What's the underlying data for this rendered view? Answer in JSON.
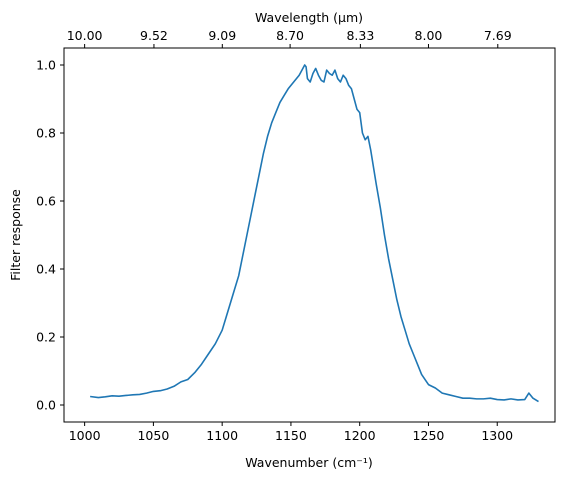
{
  "chart_data": {
    "type": "line",
    "xlabel": "Wavenumber (cm⁻¹)",
    "ylabel": "Filter response",
    "top_xlabel": "Wavelength (μm)",
    "xlim": [
      985,
      1342
    ],
    "ylim": [
      -0.05,
      1.05
    ],
    "x_ticks": [
      1000,
      1050,
      1100,
      1150,
      1200,
      1250,
      1300
    ],
    "y_ticks": [
      0.0,
      0.2,
      0.4,
      0.6,
      0.8,
      1.0
    ],
    "top_ticks": [
      {
        "wavenumber": 1000.0,
        "label": "10.00"
      },
      {
        "wavenumber": 1050.4,
        "label": "9.52"
      },
      {
        "wavenumber": 1100.1,
        "label": "9.09"
      },
      {
        "wavenumber": 1149.4,
        "label": "8.70"
      },
      {
        "wavenumber": 1200.5,
        "label": "8.33"
      },
      {
        "wavenumber": 1250.0,
        "label": "8.00"
      },
      {
        "wavenumber": 1300.4,
        "label": "7.69"
      }
    ],
    "series": [
      {
        "color": "#1f77b4",
        "x": [
          1004,
          1010,
          1015,
          1020,
          1025,
          1030,
          1035,
          1040,
          1045,
          1050,
          1055,
          1060,
          1065,
          1070,
          1075,
          1080,
          1085,
          1090,
          1095,
          1100,
          1103,
          1106,
          1109,
          1112,
          1115,
          1118,
          1121,
          1124,
          1127,
          1130,
          1133,
          1136,
          1139,
          1142,
          1145,
          1148,
          1150,
          1152,
          1154,
          1156,
          1158,
          1160,
          1161,
          1162,
          1164,
          1166,
          1168,
          1170,
          1172,
          1174,
          1176,
          1178,
          1180,
          1182,
          1184,
          1186,
          1188,
          1190,
          1192,
          1194,
          1196,
          1198,
          1200,
          1202,
          1204,
          1206,
          1208,
          1210,
          1212,
          1215,
          1218,
          1221,
          1224,
          1227,
          1230,
          1233,
          1236,
          1239,
          1242,
          1245,
          1250,
          1255,
          1260,
          1265,
          1270,
          1275,
          1280,
          1285,
          1290,
          1295,
          1300,
          1305,
          1310,
          1315,
          1320,
          1323,
          1326,
          1330
        ],
        "y": [
          0.025,
          0.022,
          0.024,
          0.027,
          0.026,
          0.028,
          0.03,
          0.031,
          0.035,
          0.04,
          0.042,
          0.047,
          0.055,
          0.068,
          0.075,
          0.095,
          0.12,
          0.15,
          0.18,
          0.22,
          0.26,
          0.3,
          0.34,
          0.38,
          0.44,
          0.5,
          0.56,
          0.62,
          0.68,
          0.74,
          0.79,
          0.83,
          0.86,
          0.89,
          0.91,
          0.93,
          0.94,
          0.95,
          0.96,
          0.97,
          0.985,
          1.0,
          0.995,
          0.96,
          0.95,
          0.975,
          0.99,
          0.97,
          0.955,
          0.95,
          0.985,
          0.975,
          0.97,
          0.985,
          0.96,
          0.95,
          0.97,
          0.96,
          0.94,
          0.93,
          0.9,
          0.87,
          0.86,
          0.8,
          0.78,
          0.79,
          0.75,
          0.7,
          0.65,
          0.58,
          0.5,
          0.43,
          0.37,
          0.31,
          0.26,
          0.22,
          0.18,
          0.15,
          0.12,
          0.09,
          0.06,
          0.05,
          0.035,
          0.03,
          0.025,
          0.02,
          0.02,
          0.018,
          0.018,
          0.02,
          0.016,
          0.015,
          0.018,
          0.015,
          0.016,
          0.035,
          0.02,
          0.01
        ]
      }
    ]
  }
}
